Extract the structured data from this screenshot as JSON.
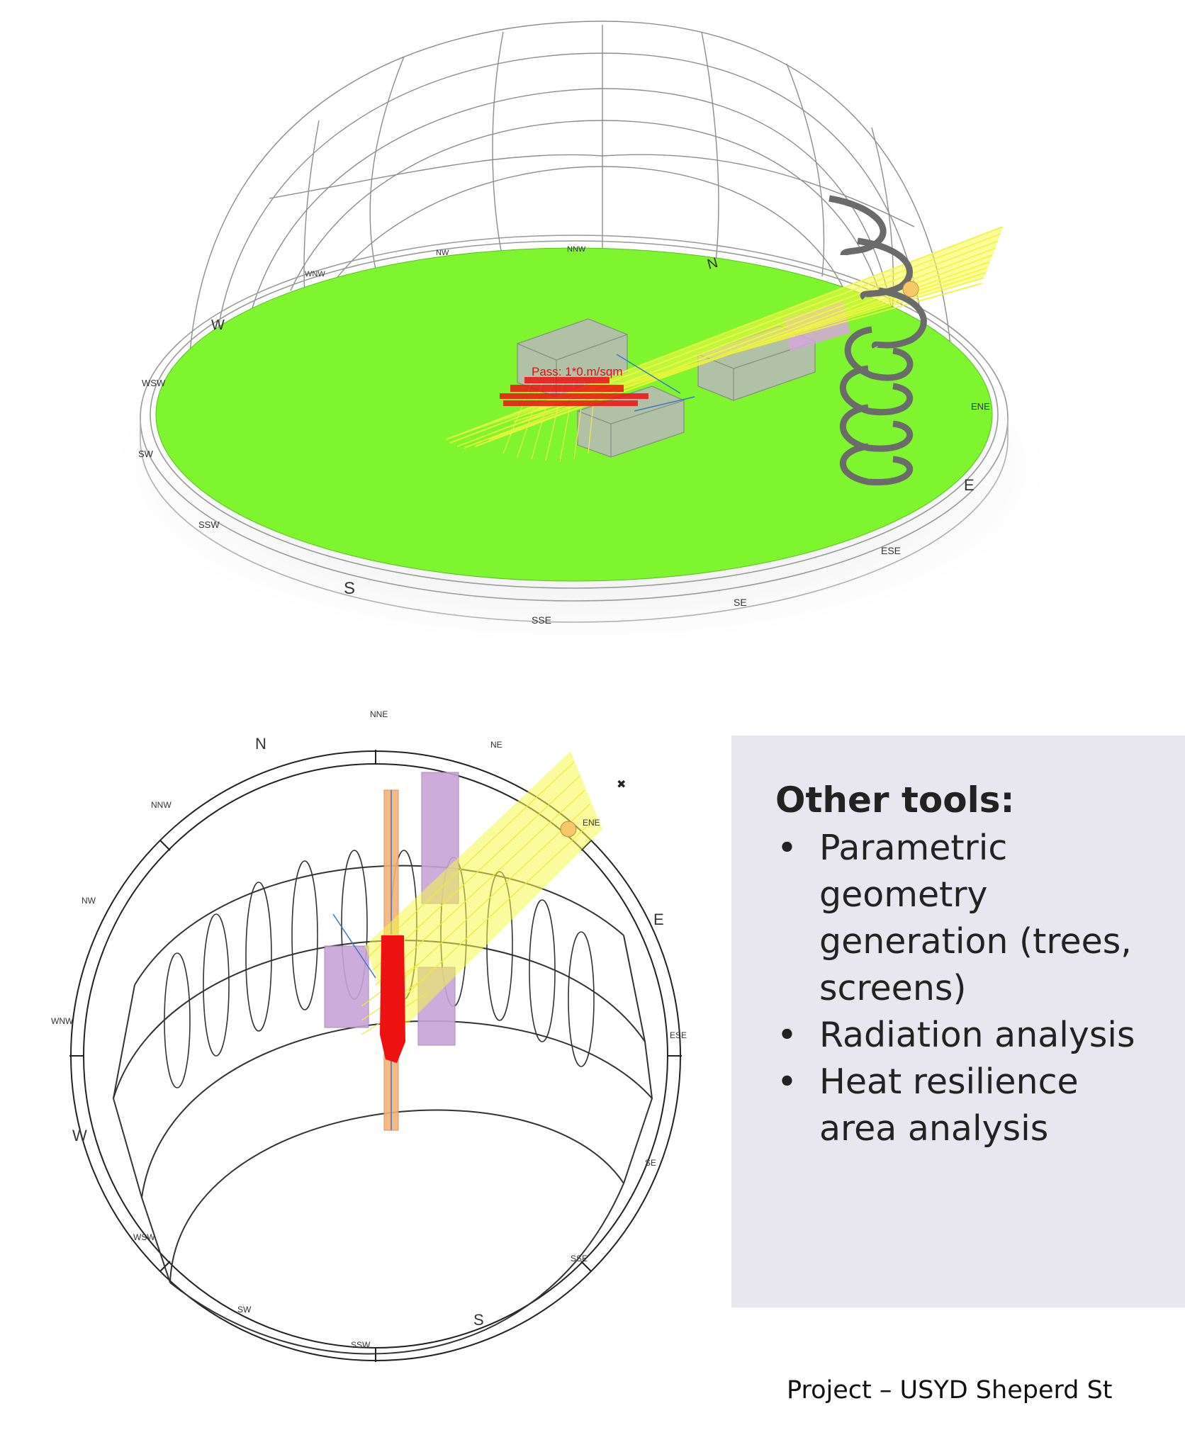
{
  "top_diagram": {
    "directions": [
      "N",
      "NNW",
      "NW",
      "WNW",
      "W",
      "WSW",
      "SW",
      "SSW",
      "S",
      "SSE",
      "SE",
      "ESE",
      "E",
      "ENE"
    ],
    "label": "Pass: 1*0.m/sqm"
  },
  "bottom_diagram": {
    "directions": [
      "N",
      "NNE",
      "NE",
      "ENE",
      "E",
      "ESE",
      "SE",
      "SSE",
      "S",
      "SSW",
      "SW",
      "WSW",
      "W",
      "WNW",
      "NW",
      "NNW"
    ]
  },
  "info": {
    "heading": "Other tools:",
    "items": [
      "Parametric geometry generation (trees, screens)",
      "Radiation analysis",
      "Heat resilience area analysis"
    ]
  },
  "caption": "Project – USYD Sheperd St",
  "colors": {
    "ground": "#7ef52e",
    "sun_rays": "#f4f74a",
    "sun_path": "#6b6b6b",
    "test_points": "#ee1111",
    "volumes": "#c8a4d8",
    "column": "#f4b27a",
    "panel_bg": "#e8e6ee"
  }
}
